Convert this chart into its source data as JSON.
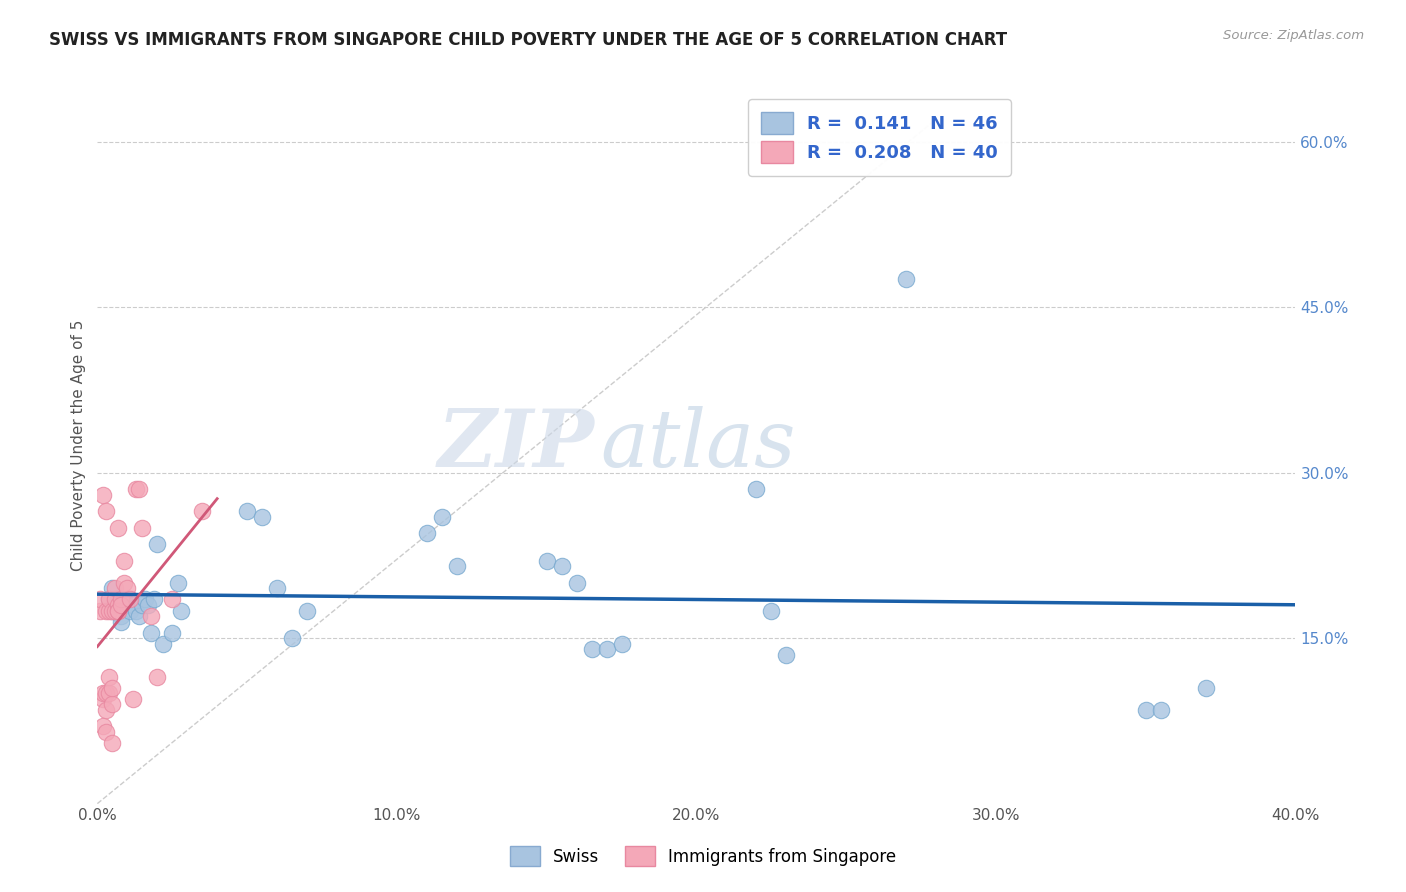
{
  "title": "SWISS VS IMMIGRANTS FROM SINGAPORE CHILD POVERTY UNDER THE AGE OF 5 CORRELATION CHART",
  "source": "Source: ZipAtlas.com",
  "ylabel": "Child Poverty Under the Age of 5",
  "xlim": [
    0.0,
    0.4
  ],
  "ylim": [
    0.0,
    0.65
  ],
  "r_swiss": 0.141,
  "n_swiss": 46,
  "r_singapore": 0.208,
  "n_singapore": 40,
  "swiss_color": "#a8c4e0",
  "swiss_edge_color": "#7aaad0",
  "singapore_color": "#f4a8b8",
  "singapore_edge_color": "#e888a0",
  "swiss_line_color": "#1a5fa8",
  "singapore_line_color": "#d05878",
  "legend_label_swiss": "Swiss",
  "legend_label_singapore": "Immigrants from Singapore",
  "watermark_zip": "ZIP",
  "watermark_atlas": "atlas",
  "swiss_x": [
    0.004,
    0.005,
    0.005,
    0.006,
    0.006,
    0.007,
    0.007,
    0.008,
    0.008,
    0.009,
    0.01,
    0.011,
    0.012,
    0.013,
    0.014,
    0.015,
    0.016,
    0.017,
    0.018,
    0.019,
    0.02,
    0.022,
    0.025,
    0.027,
    0.028,
    0.05,
    0.055,
    0.06,
    0.065,
    0.07,
    0.11,
    0.115,
    0.12,
    0.15,
    0.155,
    0.16,
    0.165,
    0.17,
    0.175,
    0.22,
    0.225,
    0.23,
    0.27,
    0.35,
    0.355,
    0.37
  ],
  "swiss_y": [
    0.185,
    0.195,
    0.175,
    0.18,
    0.175,
    0.175,
    0.185,
    0.17,
    0.165,
    0.185,
    0.18,
    0.175,
    0.18,
    0.175,
    0.17,
    0.18,
    0.185,
    0.18,
    0.155,
    0.185,
    0.235,
    0.145,
    0.155,
    0.2,
    0.175,
    0.265,
    0.26,
    0.195,
    0.15,
    0.175,
    0.245,
    0.26,
    0.215,
    0.22,
    0.215,
    0.2,
    0.14,
    0.14,
    0.145,
    0.285,
    0.175,
    0.135,
    0.475,
    0.085,
    0.085,
    0.105
  ],
  "singapore_x": [
    0.001,
    0.001,
    0.002,
    0.002,
    0.002,
    0.002,
    0.003,
    0.003,
    0.003,
    0.003,
    0.003,
    0.004,
    0.004,
    0.004,
    0.004,
    0.005,
    0.005,
    0.005,
    0.005,
    0.006,
    0.006,
    0.006,
    0.007,
    0.007,
    0.007,
    0.007,
    0.008,
    0.008,
    0.009,
    0.009,
    0.01,
    0.011,
    0.012,
    0.013,
    0.014,
    0.015,
    0.018,
    0.02,
    0.025,
    0.035
  ],
  "singapore_y": [
    0.175,
    0.185,
    0.07,
    0.095,
    0.1,
    0.28,
    0.1,
    0.065,
    0.085,
    0.175,
    0.265,
    0.1,
    0.115,
    0.175,
    0.185,
    0.09,
    0.105,
    0.055,
    0.175,
    0.175,
    0.185,
    0.195,
    0.18,
    0.175,
    0.175,
    0.25,
    0.185,
    0.18,
    0.2,
    0.22,
    0.195,
    0.185,
    0.095,
    0.285,
    0.285,
    0.25,
    0.17,
    0.115,
    0.185,
    0.265
  ],
  "background_color": "#ffffff",
  "grid_color": "#cccccc",
  "diag_line_color": "#cccccc"
}
